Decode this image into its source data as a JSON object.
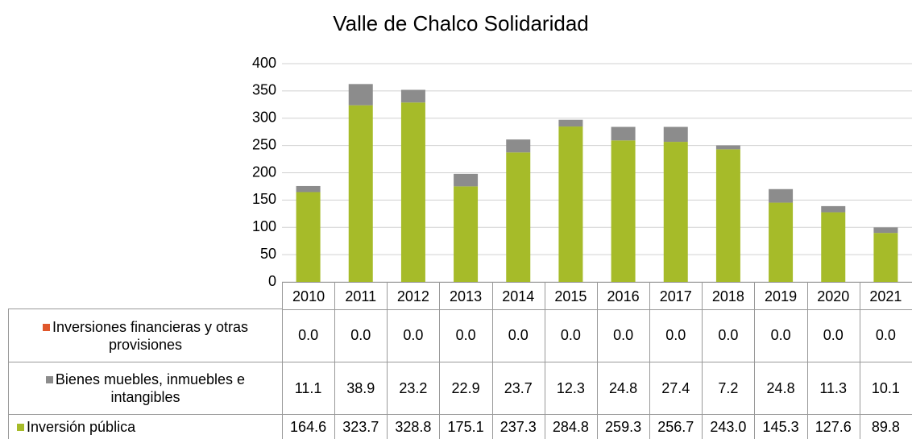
{
  "chart_data": {
    "type": "stacked_bar",
    "title": "Valle de Chalco Solidaridad",
    "categories": [
      "2010",
      "2011",
      "2012",
      "2013",
      "2014",
      "2015",
      "2016",
      "2017",
      "2018",
      "2019",
      "2020",
      "2021"
    ],
    "series": [
      {
        "name": "Inversiones financieras y otras provisiones",
        "color": "#e0572b",
        "values": [
          0,
          0,
          0,
          0,
          0,
          0,
          0,
          0,
          0,
          0,
          0,
          0
        ],
        "value_labels": [
          "0.0",
          "0.0",
          "0.0",
          "0.0",
          "0.0",
          "0.0",
          "0.0",
          "0.0",
          "0.0",
          "0.0",
          "0.0",
          "0.0"
        ]
      },
      {
        "name": "Bienes muebles, inmuebles e intangibles",
        "color": "#8c8c8c",
        "values": [
          11.1,
          38.9,
          23.2,
          22.9,
          23.7,
          12.3,
          24.8,
          27.4,
          7.2,
          24.8,
          11.3,
          10.1
        ],
        "value_labels": [
          "11.1",
          "38.9",
          "23.2",
          "22.9",
          "23.7",
          "12.3",
          "24.8",
          "27.4",
          "7.2",
          "24.8",
          "11.3",
          "10.1"
        ]
      },
      {
        "name": "Inversión pública",
        "color": "#a6bb29",
        "values": [
          164.6,
          323.7,
          328.8,
          175.1,
          237.3,
          284.8,
          259.3,
          256.7,
          243,
          145.3,
          127.6,
          89.8
        ],
        "value_labels": [
          "164.6",
          "323.7",
          "328.8",
          "175.1",
          "237.3",
          "284.8",
          "259.3",
          "256.7",
          "243.0",
          "145.3",
          "127.6",
          "89.8"
        ]
      }
    ],
    "ylim": [
      0,
      400
    ],
    "yticks": [
      0,
      50,
      100,
      150,
      200,
      250,
      300,
      350,
      400
    ],
    "grid": true,
    "legend": "table"
  }
}
